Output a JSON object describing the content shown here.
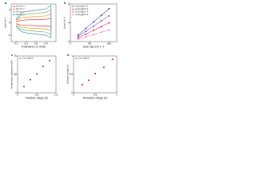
{
  "chart_data": [
    {
      "type": "line",
      "label": "a",
      "xlabel": "Potential (V vs. RHE)",
      "ylabel": "j (mA cm⁻²)",
      "x": [
        0.1,
        0.15,
        0.2,
        0.3,
        0.4,
        0.45,
        0.45,
        0.4,
        0.3,
        0.2,
        0.15,
        0.1
      ],
      "series": [
        {
          "name": "10 mV s⁻¹",
          "color": "#e41a1c",
          "values": [
            0.3,
            0.8,
            0.9,
            1.0,
            1.1,
            1.4,
            -1.2,
            -1.0,
            -0.9,
            -0.8,
            -0.7,
            -0.3
          ]
        },
        {
          "name": "20 mV s⁻¹",
          "color": "#ff7f00",
          "values": [
            0.6,
            1.6,
            1.8,
            2.0,
            2.2,
            2.8,
            -2.4,
            -2.0,
            -1.8,
            -1.6,
            -1.4,
            -0.6
          ]
        },
        {
          "name": "30 mV s⁻¹",
          "color": "#4daf4a",
          "values": [
            0.9,
            2.4,
            2.7,
            3.0,
            3.3,
            4.2,
            -3.6,
            -3.0,
            -2.7,
            -2.4,
            -2.1,
            -0.9
          ]
        },
        {
          "name": "40 mV s⁻¹",
          "color": "#377eb8",
          "values": [
            1.2,
            3.2,
            3.6,
            4.0,
            4.4,
            5.6,
            -4.8,
            -4.0,
            -3.6,
            -3.2,
            -2.8,
            -1.2
          ]
        }
      ],
      "xlim": [
        0.05,
        0.5
      ],
      "xticks": [
        0.1,
        0.2,
        0.3,
        0.4
      ],
      "ylim": [
        -6,
        6
      ],
      "yticks": [
        -4,
        0,
        4
      ],
      "legend": "upper left",
      "markers": false
    },
    {
      "type": "line",
      "label": "b",
      "xlabel": "Scan rate (mV s⁻¹)",
      "ylabel": "Δj (mA cm⁻²)",
      "x": [
        20,
        40,
        60,
        80,
        100
      ],
      "series": [
        {
          "name": "Co₃O₄@CC-1",
          "color": "#3a57c4",
          "values": [
            1.4,
            2.8,
            4.2,
            5.6,
            7.0
          ]
        },
        {
          "name": "Co₃O₄@CC-2",
          "color": "#9b4fc9",
          "values": [
            1.1,
            2.2,
            3.3,
            4.4,
            5.5
          ]
        },
        {
          "name": "Co₃O₄@CC-3",
          "color": "#e03a6b",
          "values": [
            0.8,
            1.6,
            2.4,
            3.2,
            4.0
          ]
        },
        {
          "name": "Co₃O₄@CC-4",
          "color": "#f08ab0",
          "values": [
            0.5,
            1.0,
            1.5,
            2.0,
            2.5
          ]
        }
      ],
      "xlim": [
        0,
        120
      ],
      "xticks": [
        0,
        50,
        100
      ],
      "ylim": [
        0,
        8
      ],
      "yticks": [
        0,
        4,
        8
      ],
      "legend": "upper left",
      "markers": true
    },
    {
      "type": "scatter",
      "label": "c",
      "xlabel": "Faradaic charge (C)",
      "ylabel": "Double-layer capacitance (mF)",
      "x": [
        0.2,
        0.4,
        0.6,
        0.8,
        1.0
      ],
      "series": [
        {
          "name": "Co₃O₄@CC",
          "color": "#3a57c4",
          "values": [
            12,
            25,
            36,
            50,
            61
          ]
        }
      ],
      "xlim": [
        0,
        1.2
      ],
      "xticks": [
        0,
        0.6,
        1.2
      ],
      "ylim": [
        0,
        70
      ],
      "yticks": [
        0,
        35,
        70
      ],
      "legend": "upper left"
    },
    {
      "type": "scatter",
      "label": "d",
      "xlabel": "Reduction charge (C)",
      "ylabel": "Oxidation charge (C)",
      "x": [
        0.2,
        0.35,
        0.5,
        0.7,
        0.9
      ],
      "series": [
        {
          "name": "Co₃O₄@CC",
          "color": "#e41a1c",
          "values": [
            0.22,
            0.34,
            0.52,
            0.69,
            0.91
          ]
        }
      ],
      "xlim": [
        0,
        1
      ],
      "xticks": [
        0,
        0.5,
        1
      ],
      "ylim": [
        0,
        1
      ],
      "yticks": [
        0,
        0.5,
        1
      ],
      "legend": "upper left"
    }
  ]
}
